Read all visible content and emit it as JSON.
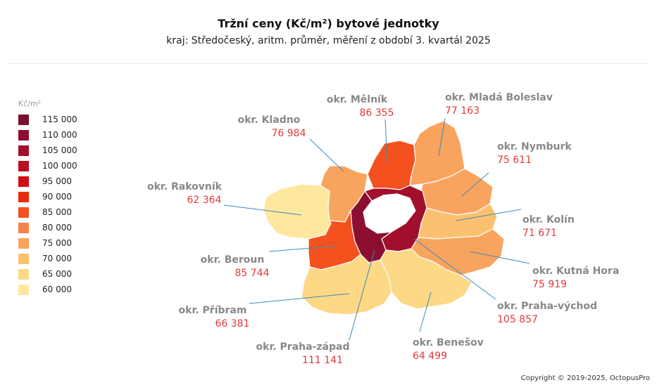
{
  "title": "Tržní ceny  (Kč/m²) bytové jednotky",
  "subtitle": "kraj: Středočeský, aritm. průměr, měření z období 3. kvartál 2025",
  "legend": {
    "unit": "Kč/m²",
    "items": [
      {
        "label": "115 000",
        "color": "#7e0e2d"
      },
      {
        "label": "110 000",
        "color": "#8c0f32"
      },
      {
        "label": "105 000",
        "color": "#a10f2c"
      },
      {
        "label": "100 000",
        "color": "#b80f22"
      },
      {
        "label": "95 000",
        "color": "#d10e14"
      },
      {
        "label": "90 000",
        "color": "#ea2c0f"
      },
      {
        "label": "85 000",
        "color": "#f4511e"
      },
      {
        "label": "80 000",
        "color": "#f7834a"
      },
      {
        "label": "75 000",
        "color": "#f9a45e"
      },
      {
        "label": "70 000",
        "color": "#fcc170"
      },
      {
        "label": "65 000",
        "color": "#fdd885"
      },
      {
        "label": "60 000",
        "color": "#fee8a0"
      }
    ]
  },
  "districts": [
    {
      "id": "melnik",
      "name": "okr. Mělník",
      "value": "86 355",
      "color": "#f4511e"
    },
    {
      "id": "mlada",
      "name": "okr. Mladá Boleslav",
      "value": "77 163",
      "color": "#f9a45e"
    },
    {
      "id": "kladno",
      "name": "okr. Kladno",
      "value": "76 984",
      "color": "#f9a45e"
    },
    {
      "id": "nymburk",
      "name": "okr. Nymburk",
      "value": "75 611",
      "color": "#f9a45e"
    },
    {
      "id": "rakovnik",
      "name": "okr. Rakovník",
      "value": "62 364",
      "color": "#fee8a0"
    },
    {
      "id": "kolin",
      "name": "okr. Kolín",
      "value": "71 671",
      "color": "#fcc170"
    },
    {
      "id": "beroun",
      "name": "okr. Beroun",
      "value": "85 744",
      "color": "#f4511e"
    },
    {
      "id": "kutna",
      "name": "okr. Kutná Hora",
      "value": "75 919",
      "color": "#f9a45e"
    },
    {
      "id": "pribram",
      "name": "okr. Příbram",
      "value": "66 381",
      "color": "#fdd885"
    },
    {
      "id": "prahavychod",
      "name": "okr. Praha-východ",
      "value": "105 857",
      "color": "#a10f2c"
    },
    {
      "id": "prahazapad",
      "name": "okr. Praha-západ",
      "value": "111 141",
      "color": "#8c0f32"
    },
    {
      "id": "benesov",
      "name": "okr. Benešov",
      "value": "64 499",
      "color": "#fdd885"
    }
  ],
  "copyright": "Copyright © 2019-2025, OctopusPro"
}
